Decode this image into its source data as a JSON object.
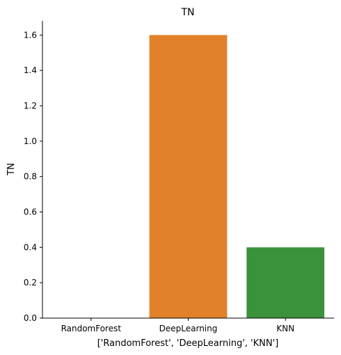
{
  "chart_data": {
    "type": "bar",
    "title": "TN",
    "xlabel": "['RandomForest', 'DeepLearning', 'KNN']",
    "ylabel": "TN",
    "categories": [
      "RandomForest",
      "DeepLearning",
      "KNN"
    ],
    "values": [
      0.0,
      1.6,
      0.4
    ],
    "colors": [
      "#1f77b4",
      "#e1812c",
      "#3a923a"
    ],
    "ylim": [
      0,
      1.68
    ],
    "yticks": [
      0.0,
      0.2,
      0.4,
      0.6,
      0.8,
      1.0,
      1.2,
      1.4,
      1.6
    ],
    "ytick_labels": [
      "0.0",
      "0.2",
      "0.4",
      "0.6",
      "0.8",
      "1.0",
      "1.2",
      "1.4",
      "1.6"
    ],
    "grid": false,
    "legend": "none"
  }
}
